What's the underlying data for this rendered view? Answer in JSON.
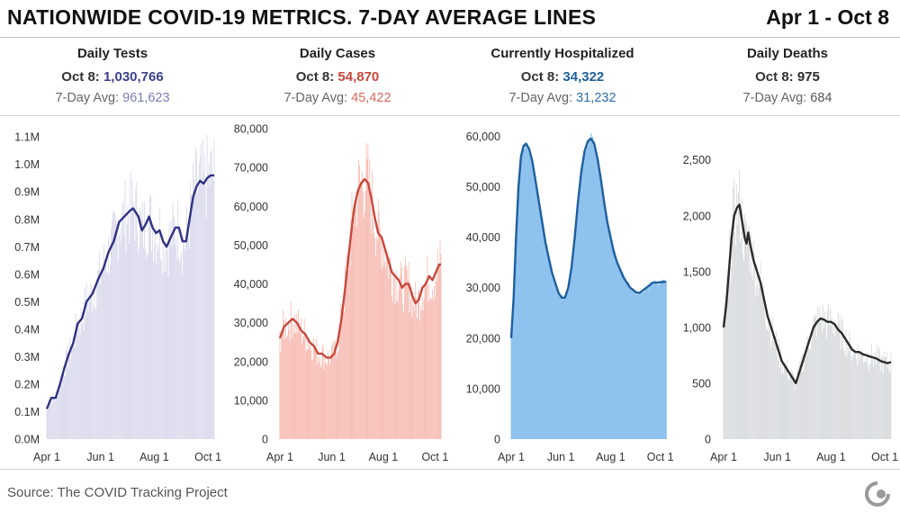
{
  "header": {
    "title": "NATIONWIDE COVID-19 METRICS. 7-DAY AVERAGE LINES",
    "daterange": "Apr 1 - Oct 8"
  },
  "footer": {
    "source": "Source: The COVID Tracking Project",
    "logo_icon": "covid-tracking-project-logo-icon"
  },
  "panels": [
    {
      "name": "Daily Tests",
      "today_label": "Oct 8:",
      "today_value": "1,030,766",
      "avg_label": "7-Day Avg:",
      "avg_value": "961,623",
      "accent": "#3b3f8f",
      "avg_color": "#7a7fb8",
      "bar_color": "#d8d8ec"
    },
    {
      "name": "Daily Cases",
      "today_label": "Oct 8:",
      "today_value": "54,870",
      "avg_label": "7-Day Avg:",
      "avg_value": "45,422",
      "accent": "#c9473a",
      "avg_color": "#d9685b",
      "bar_color": "#f6b8ae"
    },
    {
      "name": "Currently Hospitalized",
      "today_label": "Oct 8:",
      "today_value": "34,322",
      "avg_label": "7-Day Avg:",
      "avg_value": "31,232",
      "accent": "#1f5f9e",
      "avg_color": "#2d6aa6",
      "bar_color": "#8fc3ee"
    },
    {
      "name": "Daily Deaths",
      "today_label": "Oct 8:",
      "today_value": "975",
      "avg_label": "7-Day Avg:",
      "avg_value": "684",
      "accent": "#2b2b2b",
      "avg_color": "#555555",
      "bar_color": "#d6d9dc"
    }
  ],
  "chart_data": [
    {
      "type": "bar",
      "title": "Daily Tests",
      "x_ticks": [
        "Apr 1",
        "Jun 1",
        "Aug 1",
        "Oct 1"
      ],
      "x_tick_days": [
        0,
        61,
        122,
        183
      ],
      "x_range_days": [
        0,
        190
      ],
      "y_ticks": [
        "0.0M",
        "0.1M",
        "0.2M",
        "0.3M",
        "0.4M",
        "0.5M",
        "0.6M",
        "0.7M",
        "0.8M",
        "0.9M",
        "1.0M",
        "1.1M"
      ],
      "y_tick_values": [
        0,
        100000,
        200000,
        300000,
        400000,
        500000,
        600000,
        700000,
        800000,
        900000,
        1000000,
        1100000
      ],
      "ylim": [
        0,
        1130000
      ],
      "bar_color": "#d8d8ec",
      "line_color": "#2e3183",
      "avg_points": [
        [
          0,
          110000
        ],
        [
          5,
          150000
        ],
        [
          10,
          150000
        ],
        [
          15,
          200000
        ],
        [
          20,
          260000
        ],
        [
          25,
          310000
        ],
        [
          30,
          350000
        ],
        [
          35,
          420000
        ],
        [
          40,
          440000
        ],
        [
          45,
          500000
        ],
        [
          52,
          530000
        ],
        [
          58,
          580000
        ],
        [
          64,
          620000
        ],
        [
          70,
          680000
        ],
        [
          76,
          720000
        ],
        [
          82,
          790000
        ],
        [
          88,
          810000
        ],
        [
          94,
          830000
        ],
        [
          98,
          840000
        ],
        [
          104,
          810000
        ],
        [
          108,
          760000
        ],
        [
          112,
          780000
        ],
        [
          116,
          810000
        ],
        [
          120,
          770000
        ],
        [
          124,
          750000
        ],
        [
          128,
          760000
        ],
        [
          132,
          720000
        ],
        [
          136,
          700000
        ],
        [
          140,
          730000
        ],
        [
          146,
          770000
        ],
        [
          150,
          770000
        ],
        [
          154,
          720000
        ],
        [
          158,
          720000
        ],
        [
          162,
          800000
        ],
        [
          166,
          880000
        ],
        [
          170,
          920000
        ],
        [
          174,
          940000
        ],
        [
          178,
          930000
        ],
        [
          182,
          950000
        ],
        [
          186,
          960000
        ],
        [
          190,
          960000
        ]
      ]
    },
    {
      "type": "bar",
      "title": "Daily Cases",
      "x_ticks": [
        "Apr 1",
        "Jun 1",
        "Aug 1",
        "Oct 1"
      ],
      "x_tick_days": [
        0,
        61,
        122,
        183
      ],
      "x_range_days": [
        0,
        190
      ],
      "y_ticks": [
        "0",
        "10,000",
        "20,000",
        "30,000",
        "40,000",
        "50,000",
        "60,000",
        "70,000",
        "80,000"
      ],
      "y_tick_values": [
        0,
        10000,
        20000,
        30000,
        40000,
        50000,
        60000,
        70000,
        80000
      ],
      "ylim": [
        0,
        80000
      ],
      "bar_color": "#f6b8ae",
      "line_color": "#c9473a",
      "avg_points": [
        [
          0,
          26000
        ],
        [
          5,
          29000
        ],
        [
          10,
          30000
        ],
        [
          15,
          31000
        ],
        [
          20,
          30000
        ],
        [
          25,
          28000
        ],
        [
          30,
          27000
        ],
        [
          35,
          25000
        ],
        [
          40,
          24000
        ],
        [
          45,
          22000
        ],
        [
          50,
          22000
        ],
        [
          55,
          21000
        ],
        [
          60,
          21000
        ],
        [
          64,
          22000
        ],
        [
          68,
          25000
        ],
        [
          72,
          30000
        ],
        [
          76,
          37000
        ],
        [
          80,
          45000
        ],
        [
          84,
          53000
        ],
        [
          88,
          60000
        ],
        [
          92,
          64000
        ],
        [
          96,
          66000
        ],
        [
          100,
          67000
        ],
        [
          104,
          66000
        ],
        [
          108,
          62000
        ],
        [
          112,
          57000
        ],
        [
          116,
          53000
        ],
        [
          120,
          52000
        ],
        [
          124,
          49000
        ],
        [
          128,
          46000
        ],
        [
          132,
          43000
        ],
        [
          136,
          42000
        ],
        [
          140,
          41000
        ],
        [
          144,
          39000
        ],
        [
          148,
          40000
        ],
        [
          152,
          40000
        ],
        [
          156,
          37000
        ],
        [
          160,
          35000
        ],
        [
          164,
          36000
        ],
        [
          168,
          39000
        ],
        [
          172,
          40000
        ],
        [
          176,
          42000
        ],
        [
          180,
          41000
        ],
        [
          184,
          43000
        ],
        [
          188,
          45000
        ],
        [
          190,
          45000
        ]
      ]
    },
    {
      "type": "area",
      "title": "Currently Hospitalized",
      "x_ticks": [
        "Apr 1",
        "Jun 1",
        "Aug 1",
        "Oct 1"
      ],
      "x_tick_days": [
        0,
        61,
        122,
        183
      ],
      "x_range_days": [
        0,
        190
      ],
      "y_ticks": [
        "0",
        "10,000",
        "20,000",
        "30,000",
        "40,000",
        "50,000",
        "60,000"
      ],
      "y_tick_values": [
        0,
        10000,
        20000,
        30000,
        40000,
        50000,
        60000
      ],
      "ylim": [
        0,
        61500
      ],
      "bar_color": "#8fc3ee",
      "line_color": "#1f5f9e",
      "avg_points": [
        [
          0,
          20000
        ],
        [
          3,
          28000
        ],
        [
          6,
          40000
        ],
        [
          9,
          50000
        ],
        [
          12,
          56000
        ],
        [
          15,
          58000
        ],
        [
          18,
          58500
        ],
        [
          22,
          57500
        ],
        [
          26,
          55000
        ],
        [
          30,
          51000
        ],
        [
          34,
          47000
        ],
        [
          38,
          43000
        ],
        [
          42,
          39000
        ],
        [
          46,
          36000
        ],
        [
          50,
          33000
        ],
        [
          54,
          31000
        ],
        [
          58,
          29000
        ],
        [
          62,
          28000
        ],
        [
          66,
          28000
        ],
        [
          70,
          30000
        ],
        [
          74,
          34000
        ],
        [
          78,
          40000
        ],
        [
          82,
          47000
        ],
        [
          86,
          53000
        ],
        [
          90,
          57000
        ],
        [
          94,
          59000
        ],
        [
          98,
          59500
        ],
        [
          102,
          58500
        ],
        [
          106,
          55500
        ],
        [
          110,
          51500
        ],
        [
          114,
          47000
        ],
        [
          118,
          43000
        ],
        [
          122,
          40000
        ],
        [
          126,
          37000
        ],
        [
          130,
          35000
        ],
        [
          134,
          33500
        ],
        [
          138,
          32000
        ],
        [
          142,
          31000
        ],
        [
          146,
          30000
        ],
        [
          150,
          29500
        ],
        [
          154,
          29000
        ],
        [
          158,
          29000
        ],
        [
          162,
          29500
        ],
        [
          166,
          30000
        ],
        [
          170,
          30500
        ],
        [
          174,
          31000
        ],
        [
          178,
          31000
        ],
        [
          190,
          31200
        ]
      ]
    },
    {
      "type": "bar",
      "title": "Daily Deaths",
      "x_ticks": [
        "Apr 1",
        "Jun 1",
        "Aug 1",
        "Oct 1"
      ],
      "x_tick_days": [
        0,
        61,
        122,
        183
      ],
      "x_range_days": [
        0,
        190
      ],
      "y_ticks": [
        "0",
        "500",
        "1,000",
        "1,500",
        "2,000",
        "2,500"
      ],
      "y_tick_values": [
        0,
        500,
        1000,
        1500,
        2000,
        2500
      ],
      "ylim": [
        0,
        2780
      ],
      "bar_color": "#d6d9dc",
      "line_color": "#2b2b2b",
      "avg_points": [
        [
          0,
          1000
        ],
        [
          3,
          1200
        ],
        [
          6,
          1500
        ],
        [
          9,
          1800
        ],
        [
          12,
          2000
        ],
        [
          15,
          2070
        ],
        [
          18,
          2100
        ],
        [
          21,
          1950
        ],
        [
          24,
          1800
        ],
        [
          26,
          1750
        ],
        [
          28,
          1850
        ],
        [
          30,
          1750
        ],
        [
          34,
          1600
        ],
        [
          38,
          1500
        ],
        [
          42,
          1400
        ],
        [
          46,
          1250
        ],
        [
          50,
          1100
        ],
        [
          54,
          1000
        ],
        [
          58,
          900
        ],
        [
          62,
          800
        ],
        [
          66,
          700
        ],
        [
          70,
          650
        ],
        [
          74,
          600
        ],
        [
          78,
          550
        ],
        [
          82,
          500
        ],
        [
          86,
          600
        ],
        [
          90,
          700
        ],
        [
          94,
          800
        ],
        [
          98,
          900
        ],
        [
          102,
          1000
        ],
        [
          106,
          1050
        ],
        [
          110,
          1080
        ],
        [
          114,
          1070
        ],
        [
          118,
          1050
        ],
        [
          122,
          1050
        ],
        [
          126,
          1030
        ],
        [
          130,
          980
        ],
        [
          134,
          950
        ],
        [
          138,
          900
        ],
        [
          142,
          850
        ],
        [
          146,
          800
        ],
        [
          150,
          780
        ],
        [
          154,
          780
        ],
        [
          158,
          760
        ],
        [
          162,
          750
        ],
        [
          166,
          740
        ],
        [
          170,
          730
        ],
        [
          174,
          720
        ],
        [
          178,
          700
        ],
        [
          182,
          690
        ],
        [
          186,
          680
        ],
        [
          190,
          690
        ]
      ]
    }
  ]
}
